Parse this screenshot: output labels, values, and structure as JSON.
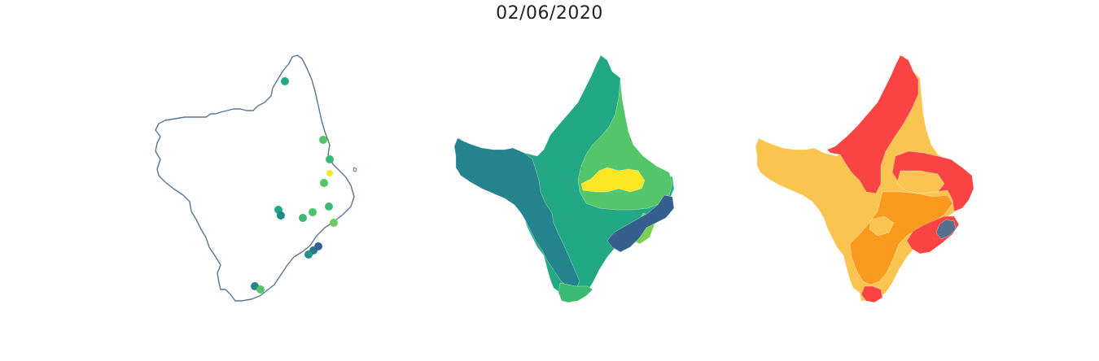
{
  "figure": {
    "title": "02/06/2020"
  },
  "colors": {
    "outline": "#5a7590",
    "viridis_dark": "#355f8d",
    "viridis_teal": "#25838e",
    "viridis_green": "#22a884",
    "viridis_lightgreen": "#54c568",
    "viridis_lime": "#7ad151",
    "viridis_yellow": "#fde725",
    "warm_light": "#f9c550",
    "warm_orange": "#f99a1e",
    "warm_red": "#fa4343",
    "warm_slate": "#54708c"
  }
}
